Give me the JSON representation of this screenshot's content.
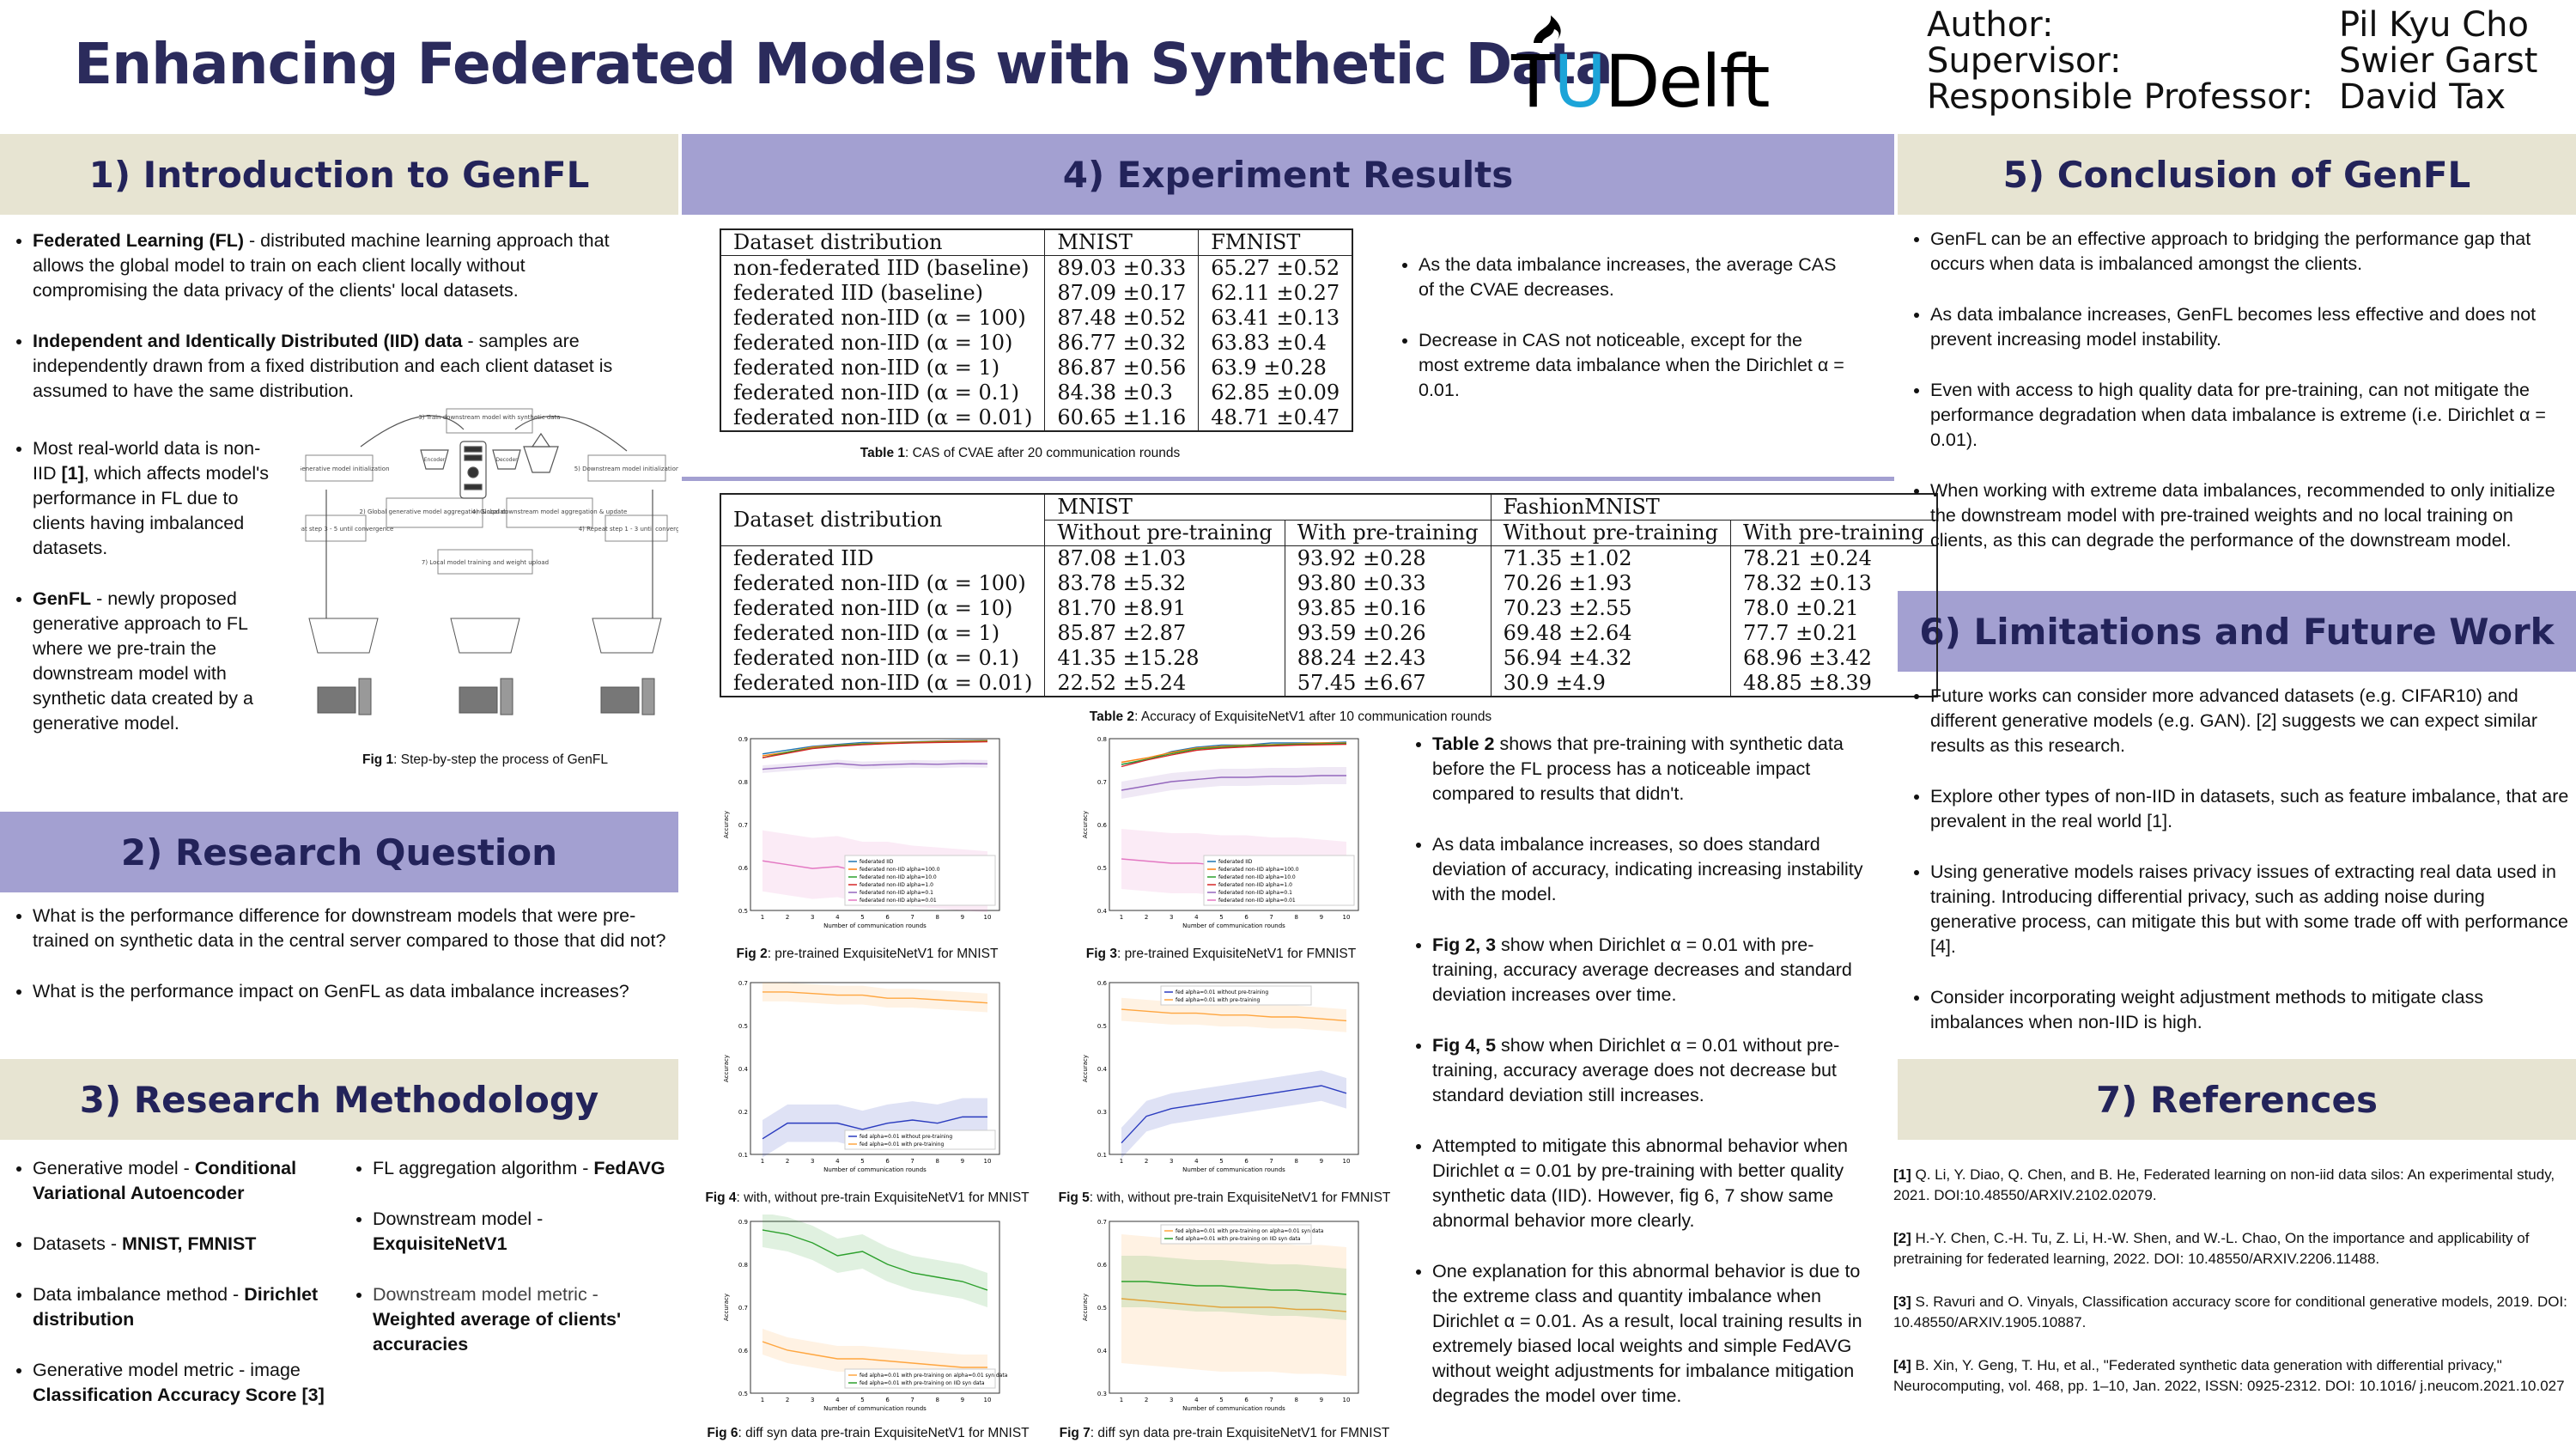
{
  "title": "Enhancing Federated Models with Synthetic Data",
  "logo": {
    "t": "T",
    "u": "U",
    "rest": "Delft"
  },
  "author": [
    {
      "k": "Author:",
      "v": "Pil Kyu Cho"
    },
    {
      "k": "Supervisor:",
      "v": "Swier Garst"
    },
    {
      "k": "Responsible Professor:",
      "v": "David Tax"
    }
  ],
  "s1": {
    "title": "1) Introduction to GenFL",
    "b1": {
      "bold": "Federated Learning (FL)",
      "rest": " - distributed machine learning approach that allows the global model to train on each client locally without compromising the data privacy of the clients' local datasets."
    },
    "b2": {
      "bold": "Independent and Identically Distributed (IID) data",
      "rest": " - samples are independently drawn from a fixed distribution and each client dataset is assumed to have the same distribution."
    },
    "b3": {
      "pre": "Most real-world data is non-IID ",
      "ref": "[1]",
      "rest": ", which affects model's performance in FL due to clients having imbalanced datasets."
    },
    "b4": {
      "bold": "GenFL",
      "rest": " -  newly proposed generative approach to FL where we pre-train the downstream model with synthetic data created by a generative model."
    },
    "fig": {
      "label": "Fig 1",
      "rest": ": Step-by-step the process of GenFL",
      "boxes": [
        "1) Generative model initialization",
        "2) Global generative model aggregation & update",
        "3) Train downstream model with synthetic data",
        "4) Global downstream model aggregation & update",
        "5) Downstream model initialization",
        "6) Repeat step 3 - 5 until convergence",
        "7) Local model training and weight upload",
        "4) Repeat step 1 - 3 until convergence"
      ],
      "small": [
        "Encoder",
        "Decoder"
      ]
    }
  },
  "s2": {
    "title": "2) Research Question",
    "q1": "What is the performance difference for downstream models that were pre-trained on synthetic data in the central server compared to those that did not?",
    "q2": "What is the performance impact on GenFL as data imbalance increases?"
  },
  "s3": {
    "title": "3) Research Methodology",
    "l": [
      {
        "pre": "Generative model - ",
        "bold": "Conditional Variational Autoencoder"
      },
      {
        "pre": "Datasets - ",
        "bold": "MNIST, FMNIST"
      },
      {
        "pre": "Data imbalance method - ",
        "bold": "Dirichlet distribution"
      },
      {
        "pre": "Generative model metric - image ",
        "bold": "Classification Accuracy Score [3]"
      }
    ],
    "r": [
      {
        "pre": "FL aggregation algorithm - ",
        "bold": "FedAVG"
      },
      {
        "pre": "Downstream model - ",
        "bold": "ExquisiteNetV1"
      },
      {
        "pre": "Downstream model metric - ",
        "bold": "Weighted average of clients' accuracies"
      }
    ]
  },
  "s4": {
    "title": "4) Experiment Results",
    "t1": {
      "header": [
        "Dataset distribution",
        "MNIST",
        "FMNIST"
      ],
      "rows": [
        [
          "non-federated IID (baseline)",
          "89.03 ±0.33",
          "65.27 ±0.52"
        ],
        [
          "federated IID (baseline)",
          "87.09 ±0.17",
          "62.11 ±0.27"
        ],
        [
          "federated non-IID (α = 100)",
          "87.48 ±0.52",
          "63.41 ±0.13"
        ],
        [
          "federated non-IID (α = 10)",
          "86.77 ±0.32",
          "63.83 ±0.4"
        ],
        [
          "federated non-IID (α = 1)",
          "86.87 ±0.56",
          "63.9 ±0.28"
        ],
        [
          "federated non-IID (α = 0.1)",
          "84.38 ±0.3",
          "62.85 ±0.09"
        ],
        [
          "federated non-IID (α = 0.01)",
          "60.65 ±1.16",
          "48.71 ±0.47"
        ]
      ],
      "cap_label": "Table 1",
      "cap_rest": ": CAS of CVAE after 20 communication rounds"
    },
    "notes1": [
      "As the data imbalance increases, the average CAS of the CVAE decreases.",
      "Decrease in CAS not noticeable, except for the most extreme data imbalance when the Dirichlet α = 0.01."
    ],
    "t2": {
      "groups": [
        "Dataset distribution",
        "MNIST",
        "FashionMNIST"
      ],
      "sub": [
        "Without pre-training",
        "With pre-training",
        "Without pre-training",
        "With pre-training"
      ],
      "rows": [
        [
          "federated IID",
          "87.08 ±1.03",
          "93.92 ±0.28",
          "71.35 ±1.02",
          "78.21 ±0.24"
        ],
        [
          "federated non-IID (α = 100)",
          "83.78 ±5.32",
          "93.80 ±0.33",
          "70.26 ±1.93",
          "78.32 ±0.13"
        ],
        [
          "federated non-IID (α = 10)",
          "81.70 ±8.91",
          "93.85 ±0.16",
          "70.23 ±2.55",
          "78.0 ±0.21"
        ],
        [
          "federated non-IID (α = 1)",
          "85.87 ±2.87",
          "93.59 ±0.26",
          "69.48 ±2.64",
          "77.7 ±0.21"
        ],
        [
          "federated non-IID (α = 0.1)",
          "41.35 ±15.28",
          "88.24 ±2.43",
          "56.94 ±4.32",
          "68.96 ±3.42"
        ],
        [
          "federated non-IID (α = 0.01)",
          "22.52 ±5.24",
          "57.45 ±6.67",
          "30.9 ±4.9",
          "48.85 ±8.39"
        ]
      ],
      "cap_label": "Table 2",
      "cap_rest": ": Accuracy of ExquisiteNetV1 after 10 communication rounds"
    },
    "figs": [
      {
        "label": "Fig 2",
        "rest": ":  pre-trained ExquisiteNetV1 for MNIST"
      },
      {
        "label": "Fig 3",
        "rest": ": pre-trained ExquisiteNetV1 for FMNIST"
      },
      {
        "label": "Fig 4",
        "rest": ": with, without pre-train ExquisiteNetV1  for MNIST"
      },
      {
        "label": "Fig 5",
        "rest": ": with, without pre-train ExquisiteNetV1 for FMNIST"
      },
      {
        "label": "Fig 6",
        "rest": ": diff syn data pre-train ExquisiteNetV1 for MNIST"
      },
      {
        "label": "Fig 7",
        "rest": ": diff syn data pre-train ExquisiteNetV1 for FMNIST"
      }
    ],
    "plot_text": {
      "x": "Number of communication rounds",
      "y": "Accuracy",
      "leg5": [
        "federated IID",
        "federated non-IID alpha=100.0",
        "federated non-IID alpha=10.0",
        "federated non-IID alpha=1.0",
        "federated non-IID alpha=0.1",
        "federated non-IID alpha=0.01"
      ],
      "leg2": [
        "fed alpha=0.01 without pre-training",
        "fed alpha=0.01 with pre-training"
      ],
      "leg3": [
        "fed alpha=0.01 with pre-training on alpha=0.01 syn data",
        "fed alpha=0.01 with pre-training on IID syn data"
      ]
    },
    "notes2": [
      {
        "bold": "Table 2",
        "rest": " shows that pre-training with synthetic data before the FL process has a noticeable impact compared to results that didn't."
      },
      {
        "bold": "",
        "rest": "As data imbalance increases, so does standard deviation of accuracy, indicating increasing instability with the model."
      },
      {
        "bold": "Fig 2, 3",
        "rest": " show when Dirichlet α = 0.01 with pre-training, accuracy average decreases and standard deviation increases over time."
      },
      {
        "bold": "Fig 4, 5",
        "rest": " show when Dirichlet α = 0.01 without pre-training, accuracy average does not decrease but standard deviation still increases."
      },
      {
        "bold": "",
        "rest": "Attempted to mitigate this abnormal behavior when Dirichlet α = 0.01  by pre-training with better quality synthetic data (IID). However, fig 6, 7 show same abnormal behavior more clearly."
      },
      {
        "bold": "",
        "rest": "One explanation for this abnormal behavior is due to the extreme class and quantity imbalance when Dirichlet α = 0.01. As a result, local training results in extremely biased local weights and simple FedAVG without weight adjustments for imbalance mitigation degrades the model over time."
      }
    ]
  },
  "s5": {
    "title": "5) Conclusion of GenFL",
    "items": [
      "GenFL can be an effective approach to bridging the performance gap that occurs when data is imbalanced amongst the clients.",
      "As data imbalance increases, GenFL becomes less effective and does not prevent increasing model instability.",
      "Even with access to high quality data for pre-training, can not mitigate the performance degradation when data imbalance is extreme (i.e. Dirichlet α = 0.01).",
      "When working with extreme data imbalances, recommended to only initialize the downstream model with pre-trained weights and no local training on clients, as this can degrade the performance of the downstream model."
    ]
  },
  "s6": {
    "title": "6) Limitations and Future Work",
    "items": [
      "Future works can consider more advanced datasets (e.g. CIFAR10) and different generative models (e.g. GAN).  [2] suggests we can expect similar results as this research.",
      "Explore other types of non-IID in datasets, such as feature imbalance, that are prevalent in the real world [1].",
      "Using generative models raises privacy issues of extracting real data used in training. Introducing differential privacy, such as adding noise during generative process, can mitigate this but with some trade off with performance [4].",
      "Consider incorporating weight adjustment methods to mitigate class imbalances when non-IID is high."
    ]
  },
  "s7": {
    "title": "7) References",
    "refs": [
      {
        "n": "[1]",
        "t": " Q. Li, Y. Diao, Q. Chen, and B. He, Federated learning on non-iid data silos: An experimental study, 2021. DOI:10.48550/ARXIV.2102.02079."
      },
      {
        "n": "[2]",
        "t": " H.-Y. Chen, C.-H. Tu, Z. Li, H.-W. Shen, and W.-L. Chao, On the importance and applicability of pretraining for federated learning, 2022. DOI: 10.48550/ARXIV.2206.11488."
      },
      {
        "n": "[3]",
        "t": " S. Ravuri and O. Vinyals, Classification accuracy score for conditional generative models, 2019. DOI: 10.48550/ARXIV.1905.10887."
      },
      {
        "n": "[4]",
        "t": " B. Xin, Y. Geng, T. Hu, et al., \"Federated synthetic data generation with differential privacy,\" Neurocomputing, vol. 468, pp. 1–10, Jan. 2022, ISSN: 0925-2312. DOI: 10.1016/ j.neucom.2021.10.027"
      }
    ]
  },
  "colors": {
    "navy": "#2b2b5c",
    "beige": "#e7e4d2",
    "purple": "#a3a0d1",
    "tud_blue": "#1ca4d8"
  }
}
